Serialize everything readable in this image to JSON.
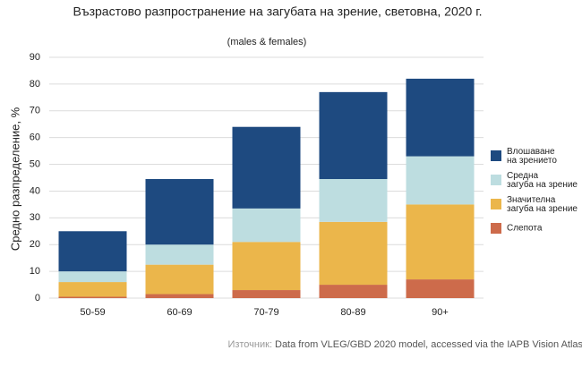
{
  "chart_data": {
    "type": "stacked_bar",
    "title": "Възрастово разпространение на загубата на зрение, световна, 2020 г.",
    "subtitle": "(males & females)",
    "y_label": "Средно разпределение, %",
    "source_prefix": "Източник:",
    "source": "Data from VLEG/GBD 2020 model, accessed via the IAPB Vision Atlas",
    "categories": [
      "50-59",
      "60-69",
      "70-79",
      "80-89",
      "90+"
    ],
    "series": [
      {
        "name": "Слепота",
        "color": "#cd6b4b",
        "values": [
          0.5,
          1.5,
          3,
          5,
          7
        ]
      },
      {
        "name": "Значителна загуба на зрение",
        "color": "#ebb64b",
        "values": [
          5.5,
          11,
          18,
          23.5,
          28
        ]
      },
      {
        "name": "Средна загуба на зрение",
        "color": "#bddde0",
        "values": [
          4,
          7.5,
          12.5,
          16,
          18
        ]
      },
      {
        "name": "Влошаване на зрението",
        "color": "#1e4a80",
        "values": [
          15,
          24.5,
          30.5,
          32.5,
          29
        ]
      }
    ],
    "ylim": [
      0,
      90
    ],
    "yticks": [
      0,
      10,
      20,
      30,
      40,
      50,
      60,
      70,
      80,
      90
    ],
    "grid": true
  }
}
